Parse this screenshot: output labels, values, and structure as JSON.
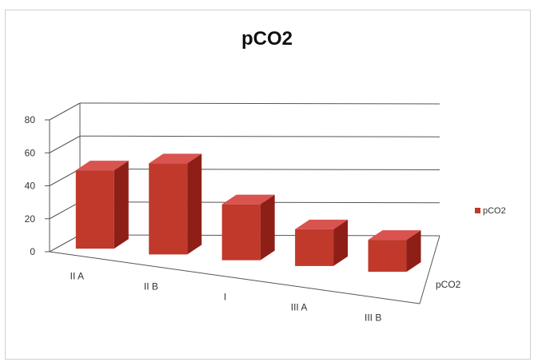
{
  "chart_data": {
    "type": "bar",
    "title": "pCO2",
    "categories": [
      "II A",
      "II B",
      "I",
      "III A",
      "III B"
    ],
    "series": [
      {
        "name": "pCO2",
        "values": [
          49,
          57,
          35,
          23,
          20
        ]
      }
    ],
    "ylim": [
      0,
      80
    ],
    "yticks": [
      0,
      20,
      40,
      60,
      80
    ],
    "depth_label": "pCO2",
    "grid": true,
    "legend": "right",
    "colors": {
      "bar_front": "#c0392b",
      "bar_side": "#8e1f17",
      "bar_top": "#d9534f"
    }
  }
}
